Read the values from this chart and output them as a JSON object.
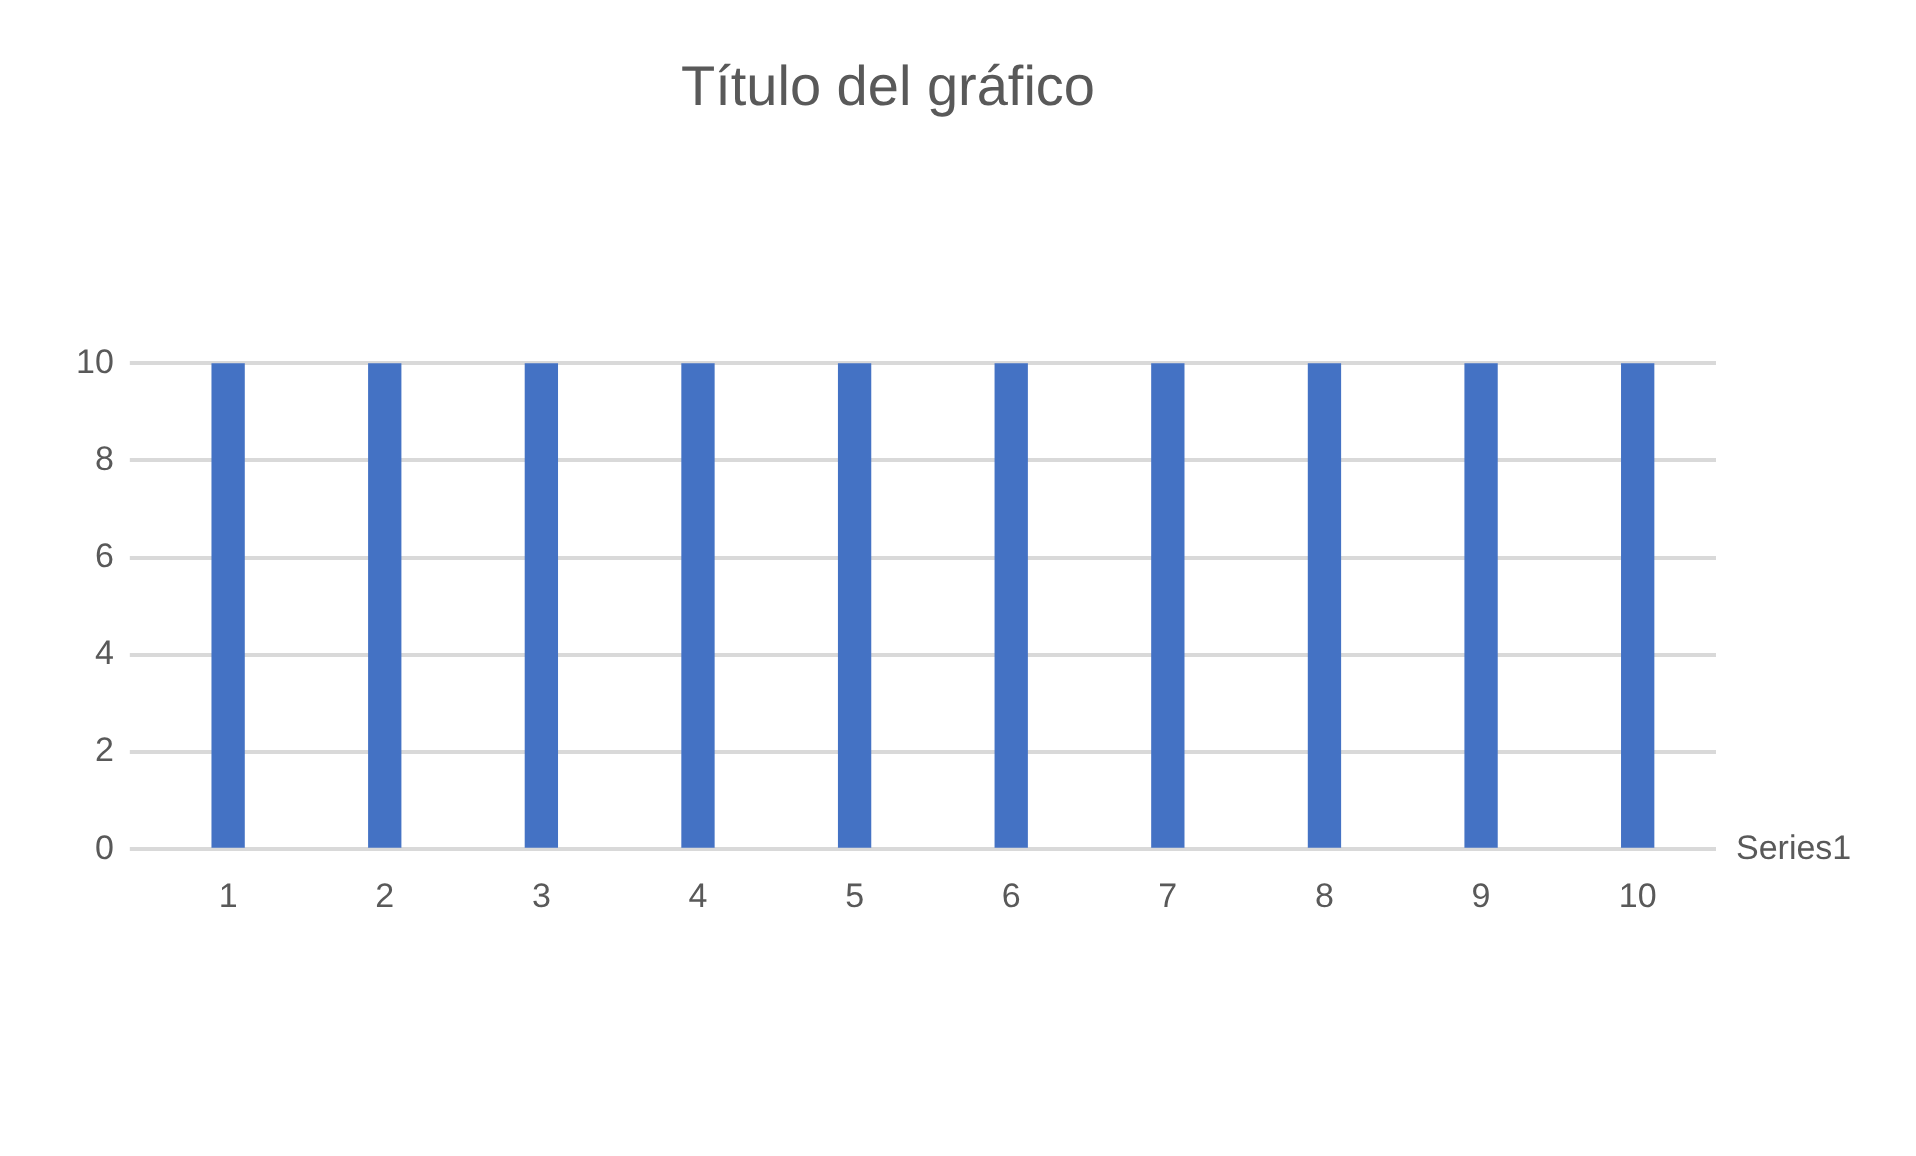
{
  "chart_data": {
    "type": "bar",
    "title": "Título del gráfico",
    "categories": [
      "1",
      "2",
      "3",
      "4",
      "5",
      "6",
      "7",
      "8",
      "9",
      "10"
    ],
    "series": [
      {
        "name": "Series1",
        "color": "#4472c4",
        "values": [
          10,
          10,
          10,
          10,
          10,
          10,
          10,
          10,
          10,
          10
        ]
      }
    ],
    "ylim": [
      0,
      10
    ],
    "yticks": [
      0,
      2,
      4,
      6,
      8,
      10
    ],
    "grid": "y",
    "legend": false
  }
}
